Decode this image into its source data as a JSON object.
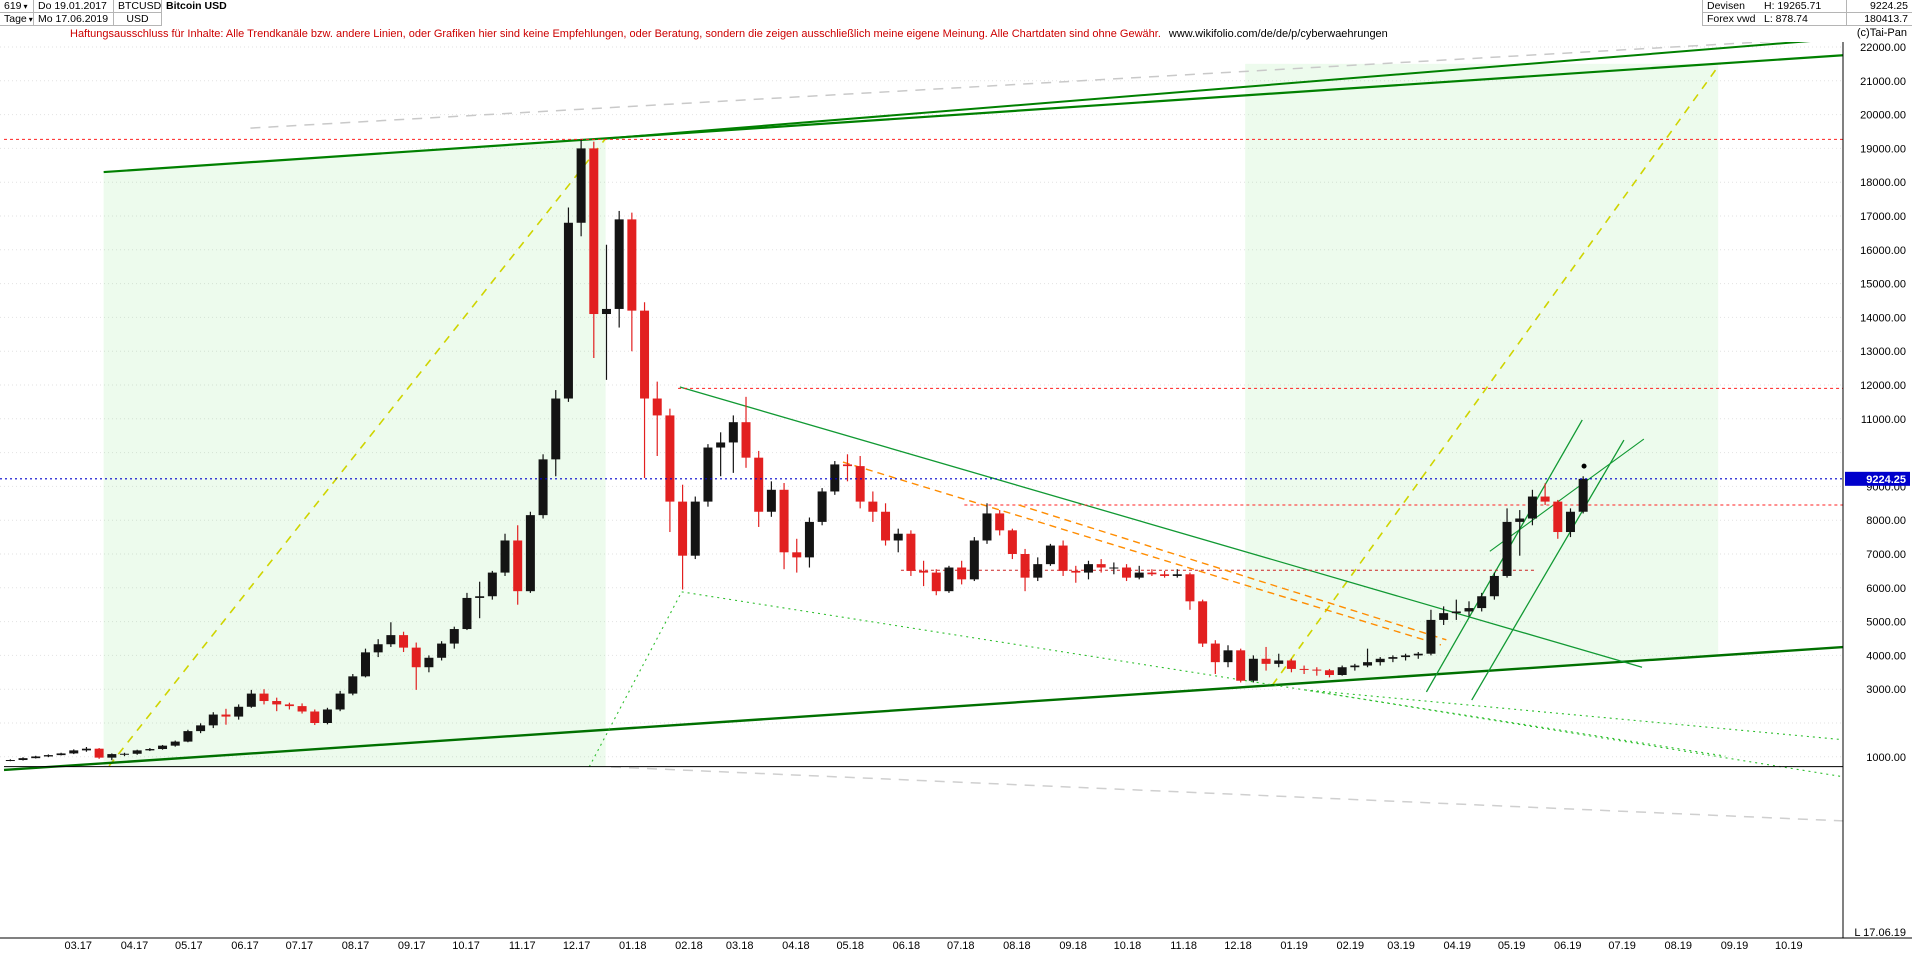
{
  "header": {
    "left": {
      "number": "619",
      "dropdown_icon": "▾",
      "date_from": "Do 19.01.2017",
      "symbol": "BTCUSD",
      "name": "Bitcoin USD",
      "period": "Tage",
      "date_to": "Mo 17.06.2019",
      "currency": "USD"
    },
    "right": {
      "group": "Devisen",
      "high": "H: 19265.71",
      "last": "9224.25",
      "source": "Forex vwd",
      "low": "L: 878.74",
      "volume": "180413.7"
    },
    "copyright": "(c)Tai-Pan"
  },
  "disclaimer": {
    "text": "Haftungsausschluss für Inhalte: Alle Trendkanäle bzw. andere Linien, oder Grafiken hier sind keine Empfehlungen, oder Beratung, sondern die zeigen ausschließlich meine eigene Meinung. Alle Chartdaten sind ohne Gewähr.",
    "url": "www.wikifolio.com/de/de/p/cyberwaehrungen"
  },
  "axis": {
    "x_labels": [
      "03.17",
      "04.17",
      "05.17",
      "06.17",
      "07.17",
      "08.17",
      "09.17",
      "10.17",
      "11.17",
      "12.17",
      "01.18",
      "02.18",
      "03.18",
      "04.18",
      "05.18",
      "06.18",
      "07.18",
      "08.18",
      "09.18",
      "10.18",
      "11.18",
      "12.18",
      "01.19",
      "02.19",
      "03.19",
      "04.19",
      "05.19",
      "06.19",
      "07.19",
      "08.19",
      "09.19",
      "10.19"
    ],
    "y_labels": [
      [
        22000,
        "22000.00"
      ],
      [
        21000,
        "21000.00"
      ],
      [
        20000,
        "20000.00"
      ],
      [
        19000,
        "19000.00"
      ],
      [
        18000,
        "18000.00"
      ],
      [
        17000,
        "17000.00"
      ],
      [
        16000,
        "16000.00"
      ],
      [
        15000,
        "15000.00"
      ],
      [
        14000,
        "14000.00"
      ],
      [
        13000,
        "13000.00"
      ],
      [
        12000,
        "12000.00"
      ],
      [
        11000,
        "11000.00"
      ],
      [
        9000,
        "9000.00"
      ],
      [
        8000,
        "8000.00"
      ],
      [
        7000,
        "7000.00"
      ],
      [
        6000,
        "6000.00"
      ],
      [
        5000,
        "5000.00"
      ],
      [
        4000,
        "4000.00"
      ],
      [
        3000,
        "3000.00"
      ],
      [
        1000,
        "1000.00"
      ]
    ],
    "last_date_label": "L 17.06.19",
    "last_price_label": "9224.25"
  },
  "colors": {
    "up": "#141414",
    "down": "#e22020",
    "grid": "#e2e2e2",
    "axis": "#000000",
    "last_price_bg": "#0000cc",
    "last_price_fg": "#ffffff",
    "shade": "#90e890",
    "disclaimer": "#cc0000"
  },
  "chart_data": {
    "type": "candlestick",
    "title": "Bitcoin USD",
    "symbol": "BTCUSD",
    "currency": "USD",
    "interval": "weekly_approx",
    "start_date": "2017-01-19",
    "end_date": "2019-06-17",
    "visible_high": 19265.71,
    "visible_low": 878.74,
    "last_price": 9224.25,
    "y_axis": {
      "min_label": 1000,
      "max_label": 22000,
      "step": 1000,
      "hidden_levels": [
        10000,
        2000
      ]
    },
    "candles_ohlc": [
      [
        900,
        925,
        870,
        905
      ],
      [
        905,
        985,
        890,
        960
      ],
      [
        960,
        1030,
        950,
        1010
      ],
      [
        1010,
        1070,
        990,
        1050
      ],
      [
        1050,
        1120,
        1040,
        1100
      ],
      [
        1100,
        1220,
        1080,
        1190
      ],
      [
        1190,
        1290,
        1150,
        1240
      ],
      [
        1240,
        1260,
        940,
        975
      ],
      [
        975,
        1100,
        900,
        1080
      ],
      [
        1080,
        1120,
        1020,
        1090
      ],
      [
        1090,
        1210,
        1060,
        1190
      ],
      [
        1190,
        1260,
        1170,
        1230
      ],
      [
        1230,
        1350,
        1210,
        1330
      ],
      [
        1330,
        1480,
        1300,
        1450
      ],
      [
        1450,
        1800,
        1430,
        1760
      ],
      [
        1760,
        1990,
        1700,
        1930
      ],
      [
        1930,
        2320,
        1850,
        2250
      ],
      [
        2250,
        2420,
        1950,
        2190
      ],
      [
        2190,
        2550,
        2100,
        2480
      ],
      [
        2480,
        2980,
        2450,
        2870
      ],
      [
        2870,
        3000,
        2550,
        2650
      ],
      [
        2650,
        2750,
        2350,
        2550
      ],
      [
        2550,
        2600,
        2400,
        2500
      ],
      [
        2500,
        2580,
        2280,
        2340
      ],
      [
        2340,
        2400,
        1940,
        2000
      ],
      [
        2000,
        2450,
        1960,
        2400
      ],
      [
        2400,
        2950,
        2350,
        2870
      ],
      [
        2870,
        3450,
        2820,
        3380
      ],
      [
        3380,
        4200,
        3350,
        4090
      ],
      [
        4090,
        4480,
        3950,
        4330
      ],
      [
        4330,
        4980,
        4250,
        4600
      ],
      [
        4600,
        4700,
        4100,
        4230
      ],
      [
        4230,
        4380,
        2980,
        3650
      ],
      [
        3650,
        4000,
        3500,
        3930
      ],
      [
        3930,
        4420,
        3850,
        4350
      ],
      [
        4350,
        4850,
        4200,
        4780
      ],
      [
        4780,
        5850,
        4750,
        5700
      ],
      [
        5700,
        6180,
        5100,
        5750
      ],
      [
        5750,
        6500,
        5650,
        6450
      ],
      [
        6450,
        7600,
        6350,
        7400
      ],
      [
        7400,
        7850,
        5500,
        5900
      ],
      [
        5900,
        8250,
        5850,
        8150
      ],
      [
        8150,
        9950,
        8050,
        9800
      ],
      [
        9800,
        11850,
        9300,
        11600
      ],
      [
        11600,
        17250,
        11500,
        16800
      ],
      [
        16800,
        19265.71,
        16400,
        19000
      ],
      [
        19000,
        19200,
        12800,
        14100
      ],
      [
        14100,
        16150,
        12150,
        14250
      ],
      [
        14250,
        17150,
        13700,
        16900
      ],
      [
        16900,
        17100,
        13000,
        14200
      ],
      [
        14200,
        14450,
        9250,
        11600
      ],
      [
        11600,
        12100,
        9900,
        11100
      ],
      [
        11100,
        11300,
        7650,
        8550
      ],
      [
        8550,
        9050,
        5950,
        6950
      ],
      [
        6950,
        8700,
        6850,
        8550
      ],
      [
        8550,
        10250,
        8400,
        10150
      ],
      [
        10150,
        10600,
        9300,
        10300
      ],
      [
        10300,
        11100,
        9400,
        10900
      ],
      [
        10900,
        11650,
        9550,
        9850
      ],
      [
        9850,
        10050,
        7800,
        8250
      ],
      [
        8250,
        9150,
        8100,
        8900
      ],
      [
        8900,
        9100,
        6550,
        7050
      ],
      [
        7050,
        7450,
        6450,
        6900
      ],
      [
        6900,
        8080,
        6600,
        7950
      ],
      [
        7950,
        8950,
        7850,
        8850
      ],
      [
        8850,
        9750,
        8750,
        9650
      ],
      [
        9650,
        9950,
        9150,
        9600
      ],
      [
        9600,
        9900,
        8350,
        8550
      ],
      [
        8550,
        8850,
        7950,
        8250
      ],
      [
        8250,
        8500,
        7250,
        7400
      ],
      [
        7400,
        7750,
        7050,
        7600
      ],
      [
        7600,
        7700,
        6350,
        6500
      ],
      [
        6500,
        6800,
        6050,
        6450
      ],
      [
        6450,
        6550,
        5780,
        5900
      ],
      [
        5900,
        6650,
        5850,
        6600
      ],
      [
        6600,
        6800,
        6100,
        6250
      ],
      [
        6250,
        7500,
        6200,
        7400
      ],
      [
        7400,
        8500,
        7300,
        8200
      ],
      [
        8200,
        8300,
        7550,
        7700
      ],
      [
        7700,
        7750,
        6850,
        7000
      ],
      [
        7000,
        7150,
        5900,
        6300
      ],
      [
        6300,
        6900,
        6200,
        6700
      ],
      [
        6700,
        7300,
        6650,
        7250
      ],
      [
        7250,
        7400,
        6350,
        6500
      ],
      [
        6500,
        6650,
        6150,
        6450
      ],
      [
        6450,
        6800,
        6250,
        6700
      ],
      [
        6700,
        6850,
        6450,
        6600
      ],
      [
        6600,
        6750,
        6400,
        6600
      ],
      [
        6600,
        6700,
        6200,
        6300
      ],
      [
        6300,
        6650,
        6250,
        6450
      ],
      [
        6450,
        6550,
        6350,
        6400
      ],
      [
        6400,
        6500,
        6300,
        6350
      ],
      [
        6350,
        6550,
        6300,
        6400
      ],
      [
        6400,
        6450,
        5350,
        5600
      ],
      [
        5600,
        5650,
        4250,
        4350
      ],
      [
        4350,
        4450,
        3450,
        3800
      ],
      [
        3800,
        4300,
        3650,
        4150
      ],
      [
        4150,
        4200,
        3200,
        3250
      ],
      [
        3250,
        4000,
        3200,
        3900
      ],
      [
        3900,
        4250,
        3550,
        3750
      ],
      [
        3750,
        4050,
        3650,
        3850
      ],
      [
        3850,
        3900,
        3500,
        3600
      ],
      [
        3600,
        3700,
        3450,
        3580
      ],
      [
        3580,
        3650,
        3400,
        3560
      ],
      [
        3560,
        3600,
        3350,
        3420
      ],
      [
        3420,
        3700,
        3400,
        3650
      ],
      [
        3650,
        3750,
        3550,
        3700
      ],
      [
        3700,
        4200,
        3650,
        3800
      ],
      [
        3800,
        3950,
        3700,
        3900
      ],
      [
        3900,
        4000,
        3800,
        3950
      ],
      [
        3950,
        4050,
        3850,
        4000
      ],
      [
        4000,
        4100,
        3900,
        4050
      ],
      [
        4050,
        5350,
        4000,
        5050
      ],
      [
        5050,
        5450,
        4900,
        5250
      ],
      [
        5250,
        5650,
        5050,
        5300
      ],
      [
        5300,
        5600,
        5150,
        5400
      ],
      [
        5400,
        5850,
        5300,
        5750
      ],
      [
        5750,
        6450,
        5650,
        6350
      ],
      [
        6350,
        8350,
        6300,
        7950
      ],
      [
        7950,
        8300,
        6950,
        8050
      ],
      [
        8050,
        8900,
        7850,
        8700
      ],
      [
        8700,
        9090,
        8450,
        8550
      ],
      [
        8550,
        8600,
        7450,
        7650
      ],
      [
        7650,
        8350,
        7500,
        8250
      ],
      [
        8250,
        9300,
        8200,
        9224.25
      ]
    ],
    "overlays": {
      "regions": [
        {
          "name": "trend-channel-shade-left",
          "points": [
            [
              55,
              18280
            ],
            [
              332,
              19290
            ],
            [
              332,
              710
            ],
            [
              55,
              710
            ]
          ],
          "opacity": 0.16
        },
        {
          "name": "trend-channel-shade-right",
          "points": [
            [
              685,
              21500
            ],
            [
              946,
              21500
            ],
            [
              946,
              4000
            ],
            [
              685,
              3060
            ]
          ],
          "opacity": 0.16
        }
      ],
      "lines": [
        {
          "name": "gray-diagonal-top",
          "color": "#c9c9c9",
          "w": 1.5,
          "dash": "10,8",
          "p": [
            [
              136,
              19600
            ],
            [
              1016,
              22290
            ]
          ]
        },
        {
          "name": "gray-diagonal-bottom",
          "color": "#cfcfcf",
          "w": 1.5,
          "dash": "10,8",
          "p": [
            [
              335,
              700
            ],
            [
              1016,
              -900
            ]
          ]
        },
        {
          "name": "yellow-diagonal-left",
          "color": "#cfd400",
          "w": 1.6,
          "dash": "8,7",
          "p": [
            [
              58,
              730
            ],
            [
              332,
              19290
            ]
          ]
        },
        {
          "name": "yellow-diagonal-right",
          "color": "#cfd400",
          "w": 1.6,
          "dash": "8,7",
          "p": [
            [
              700,
              3120
            ],
            [
              947,
              21500
            ]
          ]
        },
        {
          "name": "resistance-upper",
          "color": "#008000",
          "w": 2.2,
          "dash": "",
          "p": [
            [
              55,
              18300
            ],
            [
              1016,
              21760
            ]
          ]
        },
        {
          "name": "resistance-upper-2",
          "color": "#008000",
          "w": 2,
          "dash": "",
          "p": [
            [
              332,
              19290
            ],
            [
              1016,
              22260
            ]
          ]
        },
        {
          "name": "support-long-term",
          "color": "#007000",
          "w": 2.4,
          "dash": "",
          "p": [
            [
              0,
              610
            ],
            [
              1016,
              4250
            ]
          ]
        },
        {
          "name": "green-descending-long",
          "color": "#119933",
          "w": 1.3,
          "dash": "",
          "p": [
            [
              373,
              11940
            ],
            [
              904,
              3650
            ]
          ]
        },
        {
          "name": "green-steep-channel-1",
          "color": "#119933",
          "w": 1.3,
          "dash": "",
          "p": [
            [
              785,
              2920
            ],
            [
              871,
              10965
            ]
          ]
        },
        {
          "name": "green-steep-channel-2",
          "color": "#119933",
          "w": 1.3,
          "dash": "",
          "p": [
            [
              810,
              2680
            ],
            [
              894,
              10370
            ]
          ]
        },
        {
          "name": "green-mini-trend",
          "color": "#119933",
          "w": 1.1,
          "dash": "",
          "p": [
            [
              820,
              7080
            ],
            [
              905,
              10400
            ]
          ]
        },
        {
          "name": "green-dotted-rise",
          "color": "#2fbf2f",
          "w": 1.1,
          "dash": "2,4",
          "p": [
            [
              323,
              704
            ],
            [
              374,
              5880
            ]
          ]
        },
        {
          "name": "green-dotted-lows",
          "color": "#2fbf2f",
          "w": 1.1,
          "dash": "2,4",
          "p": [
            [
              374,
              5880
            ],
            [
              950,
              1020
            ]
          ]
        },
        {
          "name": "green-dotted-fan-1",
          "color": "#2fbf2f",
          "w": 1.1,
          "dash": "2,4",
          "p": [
            [
              718,
              2980
            ],
            [
              1016,
              1500
            ]
          ]
        },
        {
          "name": "green-dotted-fan-2",
          "color": "#2fbf2f",
          "w": 1.1,
          "dash": "2,4",
          "p": [
            [
              718,
              2980
            ],
            [
              1016,
              400
            ]
          ]
        },
        {
          "name": "red-ath-level",
          "color": "#ff2222",
          "w": 1,
          "dash": "3,3",
          "p": [
            [
              0,
              19265.71
            ],
            [
              1016,
              19265.71
            ]
          ]
        },
        {
          "name": "red-12000-level",
          "color": "#ff2222",
          "w": 1,
          "dash": "3,3",
          "p": [
            [
              372,
              11900
            ],
            [
              1016,
              11900
            ]
          ]
        },
        {
          "name": "red-8450-level",
          "color": "#ff2222",
          "w": 1,
          "dash": "3,3",
          "p": [
            [
              530,
              8450
            ],
            [
              1016,
              8450
            ]
          ]
        },
        {
          "name": "red-6500-level",
          "color": "#cc2222",
          "w": 1,
          "dash": "3,3",
          "p": [
            [
              495,
              6520
            ],
            [
              845,
              6520
            ]
          ]
        },
        {
          "name": "orange-descending-1",
          "color": "#ff8c00",
          "w": 1.4,
          "dash": "7,5",
          "p": [
            [
              463,
              9720
            ],
            [
              793,
              4310
            ]
          ]
        },
        {
          "name": "orange-descending-2",
          "color": "#ff8c00",
          "w": 1.4,
          "dash": "7,5",
          "p": [
            [
              560,
              8450
            ],
            [
              796,
              4460
            ]
          ]
        },
        {
          "name": "black-old-support",
          "color": "#000000",
          "w": 1,
          "dash": "",
          "p": [
            [
              0,
              710
            ],
            [
              1016,
              710
            ]
          ]
        }
      ],
      "last_price_line": {
        "name": "blue-last-price-level",
        "color": "#0000cc",
        "w": 1.1,
        "dash": "2,3",
        "value": 9224.25
      },
      "marker_dot": {
        "day": 872,
        "value": 9600
      }
    }
  }
}
